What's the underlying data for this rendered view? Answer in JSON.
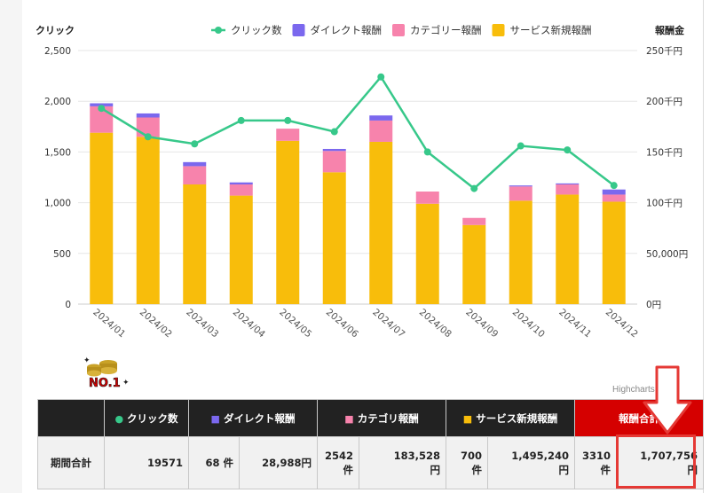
{
  "chart_data": {
    "type": "bar",
    "stacked": true,
    "categories": [
      "2024/01",
      "2024/02",
      "2024/03",
      "2024/04",
      "2024/05",
      "2024/06",
      "2024/07",
      "2024/08",
      "2024/09",
      "2024/10",
      "2024/11",
      "2024/12"
    ],
    "y_left_label": "クリック",
    "y_right_label": "報酬金",
    "y_left_ticks": [
      "0",
      "500",
      "1,000",
      "1,500",
      "2,000",
      "2,500"
    ],
    "y_right_ticks": [
      "0円",
      "50,000円",
      "100千円",
      "150千円",
      "200千円",
      "250千円"
    ],
    "y_left_range": [
      0,
      2500
    ],
    "y_right_range": [
      0,
      250000
    ],
    "legend_position": "top-right",
    "grid": true,
    "series": [
      {
        "name": "サービス新規報酬",
        "color": "#f8bd0b",
        "kind": "bar",
        "axis": "right",
        "values": [
          169000,
          165000,
          118000,
          107000,
          161000,
          130000,
          160000,
          99000,
          78000,
          102000,
          108000,
          101000
        ]
      },
      {
        "name": "カテゴリー報酬",
        "color": "#f783ac",
        "kind": "bar",
        "axis": "right",
        "values": [
          26000,
          19000,
          18000,
          11000,
          12000,
          21000,
          21000,
          12000,
          7000,
          14000,
          10000,
          7000
        ]
      },
      {
        "name": "ダイレクト報酬",
        "color": "#7b68ee",
        "kind": "bar",
        "axis": "right",
        "values": [
          3000,
          4000,
          4000,
          2000,
          0,
          2000,
          5000,
          0,
          0,
          1000,
          1000,
          5000
        ]
      },
      {
        "name": "クリック数",
        "color": "#37c88a",
        "kind": "line",
        "axis": "left",
        "values": [
          1930,
          1650,
          1580,
          1810,
          1810,
          1700,
          2240,
          1500,
          1140,
          1560,
          1520,
          1170
        ]
      }
    ],
    "credit": "Highcharts.com"
  },
  "badge_text": "NO.1",
  "table": {
    "headers": [
      {
        "dot": "●",
        "label": "クリック数",
        "dot_color": "#37c88a"
      },
      {
        "dot": "■",
        "label": "ダイレクト報酬",
        "dot_color": "#7b68ee"
      },
      {
        "dot": "■",
        "label": "カテゴリ報酬",
        "dot_color": "#f783ac"
      },
      {
        "dot": "■",
        "label": "サービス新規報酬",
        "dot_color": "#f8bd0b"
      },
      {
        "dot": "",
        "label": "報酬合計",
        "dot_color": ""
      }
    ],
    "row_label": "期間合計",
    "clicks": "19571",
    "direct_count": "68 件",
    "direct_amount": "28,988円",
    "category_count_num": "2542",
    "category_count_unit": "件",
    "category_amount_num": "183,528",
    "category_amount_unit": "円",
    "service_count_num": "700",
    "service_count_unit": "件",
    "service_amount_num": "1,495,240",
    "service_amount_unit": "円",
    "total_count_num": "3310",
    "total_count_unit": "件",
    "total_amount_num": "1,707,756",
    "total_amount_unit": "円"
  }
}
